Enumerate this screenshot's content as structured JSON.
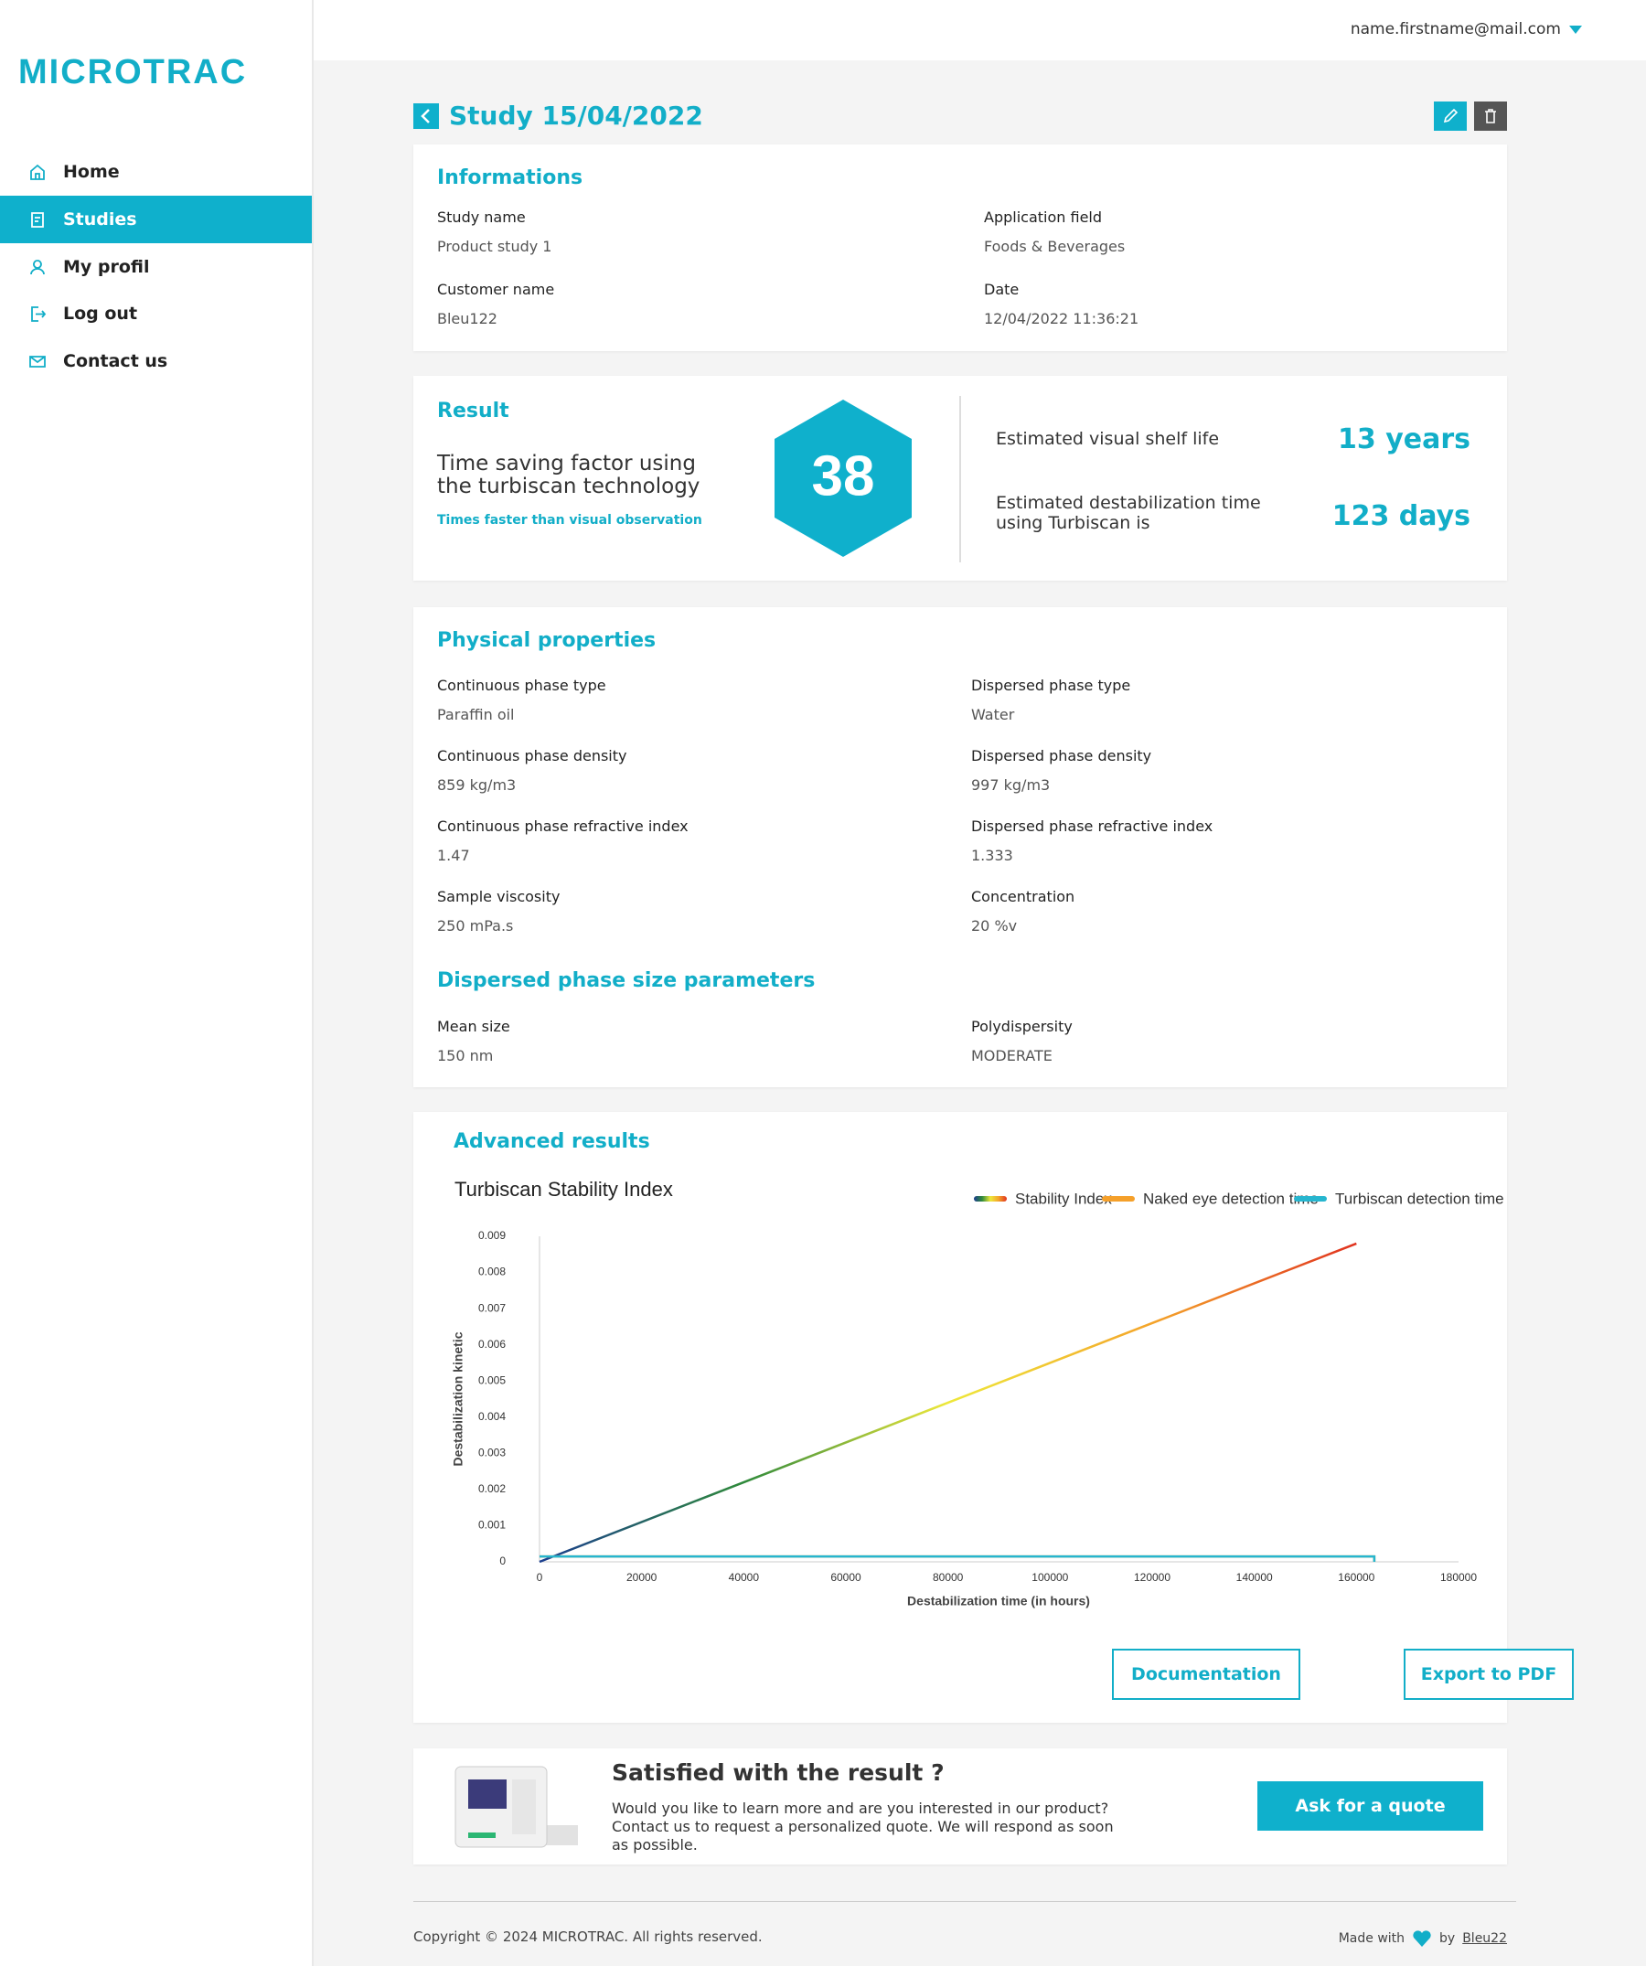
{
  "user": {
    "email": "name.firstname@mail.com"
  },
  "brand": "MICROTRAC",
  "nav": [
    "Home",
    "Studies",
    "My profil",
    "Log out",
    "Contact us"
  ],
  "active_nav": 1,
  "study": {
    "title": "Study 15/04/2022"
  },
  "informations": {
    "title": "Informations",
    "fields": [
      {
        "label": "Study name",
        "value": "Product study 1"
      },
      {
        "label": "Application field",
        "value": "Foods & Beverages"
      },
      {
        "label": "Customer name",
        "value": "Bleu122"
      },
      {
        "label": "Date",
        "value": "12/04/2022 11:36:21"
      }
    ]
  },
  "result": {
    "title": "Result",
    "description": "Time saving factor using the turbiscan technology",
    "note": "Times faster than visual observation",
    "factor": 38,
    "metrics": [
      {
        "label": "Estimated visual shelf life",
        "value": "13 years"
      },
      {
        "label": "Estimated destabilization time using Turbiscan is",
        "value": "123 days"
      }
    ]
  },
  "physical": {
    "title": "Physical properties",
    "fields": [
      {
        "label": "Continuous phase type",
        "value": "Paraffin oil"
      },
      {
        "label": "Dispersed phase type",
        "value": "Water"
      },
      {
        "label": "Continuous phase density",
        "value": "859 kg/m3"
      },
      {
        "label": "Dispersed phase density",
        "value": "997 kg/m3"
      },
      {
        "label": "Continuous phase refractive index",
        "value": "1.47"
      },
      {
        "label": "Dispersed phase refractive index",
        "value": "1.333"
      },
      {
        "label": "Sample viscosity",
        "value": "250 mPa.s"
      },
      {
        "label": "Concentration",
        "value": "20 %v"
      }
    ]
  },
  "size": {
    "title": "Dispersed phase size parameters",
    "fields": [
      {
        "label": "Mean size",
        "value": "150 nm"
      },
      {
        "label": "Polydispersity",
        "value": "MODERATE"
      }
    ]
  },
  "advanced": {
    "title": "Advanced results",
    "buttons": [
      "Documentation",
      "Export to PDF"
    ]
  },
  "chart_data": {
    "type": "line",
    "title": "Turbiscan Stability Index",
    "x_label": "Destabilization time (in hours)",
    "y_label": "Destabilization kinetic",
    "xlim": [
      0,
      180000
    ],
    "xticks": [
      0,
      20000,
      40000,
      60000,
      80000,
      100000,
      120000,
      140000,
      160000,
      180000
    ],
    "ylim": [
      0,
      0.009
    ],
    "yticks": [
      0,
      0.001,
      0.002,
      0.003,
      0.004,
      0.005,
      0.006,
      0.007,
      0.008,
      0.009
    ],
    "grid": false,
    "series": [
      {
        "name": "Stability Index",
        "colors": [
          "#1b3d8f",
          "#2f8a3b",
          "#eee83a",
          "#f4a42a",
          "#e0321f"
        ],
        "x": [
          0,
          160000
        ],
        "values": [
          0,
          0.0088
        ]
      },
      {
        "name": "Naked eye detection time",
        "color": "#f5a02a",
        "x": [
          0,
          163500,
          163500
        ],
        "values": [
          0.00015,
          0.00015,
          0
        ]
      },
      {
        "name": "Turbiscan detection time",
        "color": "#27b6cf",
        "x": [
          0,
          163500,
          163500
        ],
        "values": [
          0.00015,
          0.00015,
          0
        ]
      }
    ]
  },
  "promo": {
    "title": "Satisfied with the result ?",
    "text": "Would you like to learn more and are you interested in our product? Contact us to request a personalized quote. We will respond as soon as possible.",
    "button": "Ask for a quote"
  },
  "footer": {
    "copyright": "Copyright © 2024 MICROTRAC. All rights reserved.",
    "made_with": "Made with",
    "by": "by",
    "author": "Bleu22"
  }
}
